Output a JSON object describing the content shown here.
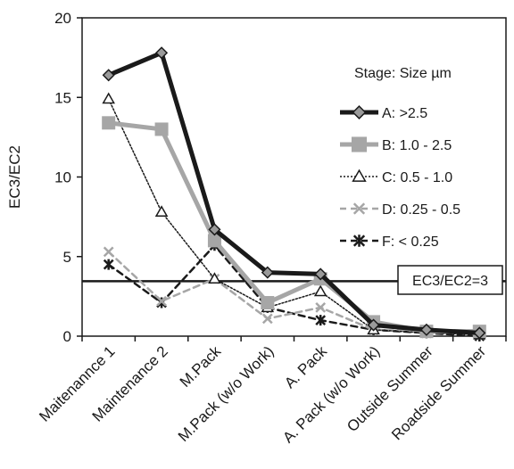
{
  "chart_data": {
    "type": "line",
    "categories": [
      "Maitenannce 1",
      "Maintenance 2",
      "M.Pack",
      "M.Pack (w/o Work)",
      "A. Pack",
      "A. Pack (w/o Work)",
      "Outside Summer",
      "Roadside Summer"
    ],
    "ylabel": "EC3/EC2",
    "xlabel": "",
    "ylim": [
      0,
      20
    ],
    "yticks": [
      0,
      5,
      10,
      15,
      20
    ],
    "grid": false,
    "legend_title": "Stage: Size µm",
    "legend_position": "top-right",
    "series": [
      {
        "name": "A: >2.5",
        "color": "#1a1a1a",
        "style": "solid",
        "width": "thick",
        "marker": "diamond",
        "values": [
          16.4,
          17.8,
          6.7,
          4.0,
          3.9,
          0.7,
          0.4,
          0.2
        ]
      },
      {
        "name": "B: 1.0 - 2.5",
        "color": "#a6a6a6",
        "style": "solid",
        "width": "thick",
        "marker": "square",
        "values": [
          13.4,
          13.0,
          6.0,
          2.1,
          3.6,
          0.9,
          0.3,
          0.3
        ]
      },
      {
        "name": "C: 0.5 - 1.0",
        "color": "#1a1a1a",
        "style": "dotted",
        "width": "thin",
        "marker": "triangle",
        "values": [
          14.9,
          7.8,
          3.6,
          1.8,
          2.8,
          0.4,
          0.2,
          0.1
        ]
      },
      {
        "name": "D: 0.25 - 0.5",
        "color": "#a6a6a6",
        "style": "dashed",
        "width": "medium",
        "marker": "x",
        "values": [
          5.3,
          2.2,
          3.6,
          1.1,
          1.8,
          0.4,
          0.3,
          0.1
        ]
      },
      {
        "name": "F: < 0.25",
        "color": "#1a1a1a",
        "style": "dashed",
        "width": "medium",
        "marker": "star",
        "values": [
          4.5,
          2.1,
          5.7,
          1.8,
          1.0,
          0.4,
          0.2,
          0.0
        ]
      }
    ],
    "reference_line": {
      "value": 3.45,
      "label": "EC3/EC2=3"
    }
  }
}
